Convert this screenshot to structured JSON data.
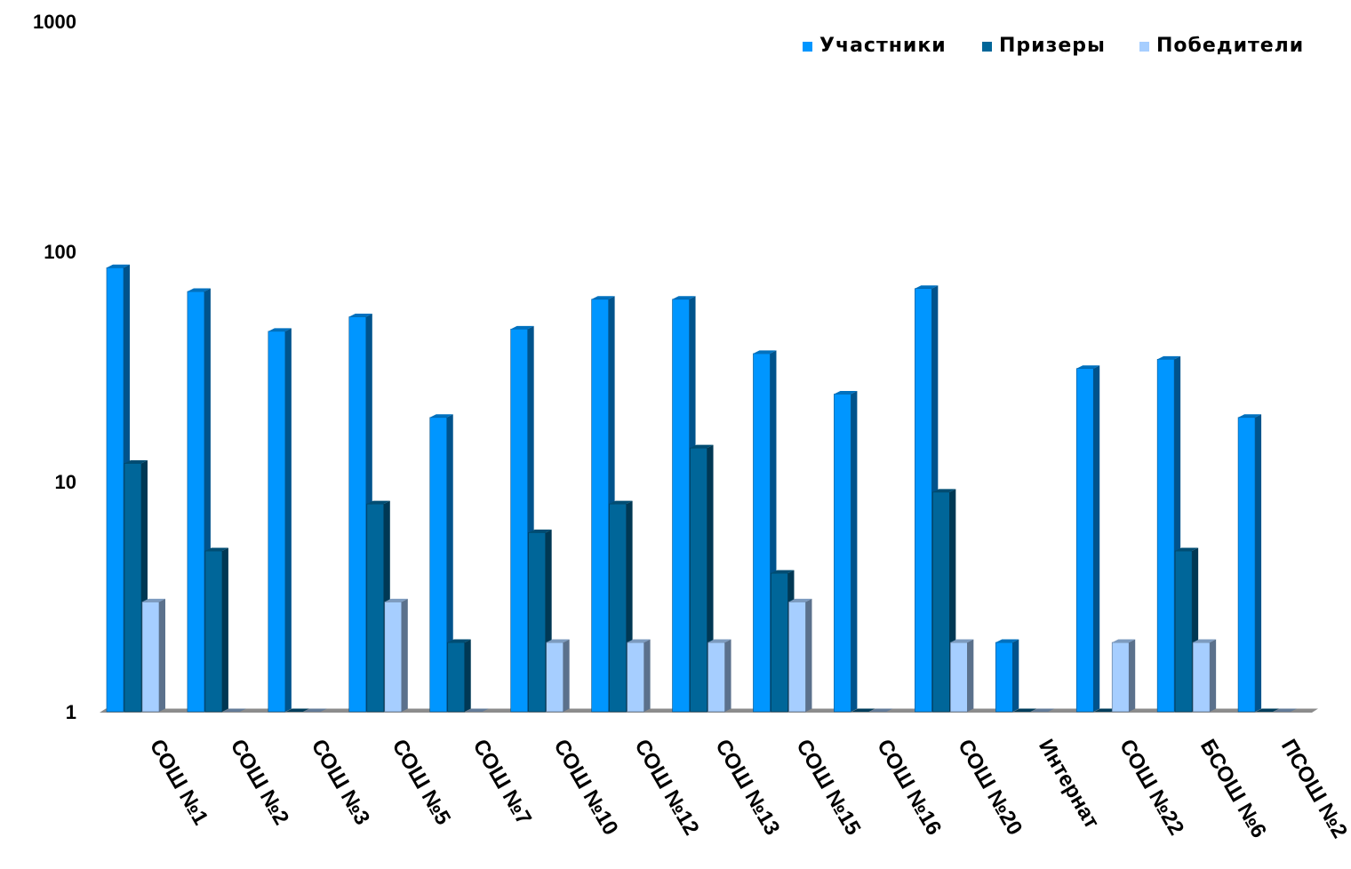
{
  "chart_data": {
    "type": "bar",
    "title": "",
    "xlabel": "",
    "ylabel": "",
    "y_scale": "log",
    "ylim": [
      1,
      1000
    ],
    "y_ticks": [
      "1",
      "10",
      "100",
      "1000"
    ],
    "y_tick_values": [
      1,
      10,
      100,
      1000
    ],
    "grid": false,
    "legend_position": "top-right",
    "categories": [
      "СОШ №1",
      "СОШ №2",
      "СОШ №3",
      "СОШ №5",
      "СОШ №7",
      "СОШ №10",
      "СОШ №12",
      "СОШ №13",
      "СОШ №15",
      "СОШ №16",
      "СОШ №20",
      "Интернат",
      "СОШ №22",
      "БСОШ №6",
      "ПСОШ №2"
    ],
    "series": [
      {
        "name": "Участники",
        "color": "#0096FF",
        "values": [
          85,
          67,
          45,
          52,
          19,
          46,
          62,
          62,
          36,
          24,
          69,
          2,
          31,
          34,
          19
        ]
      },
      {
        "name": "Призеры",
        "color": "#006699",
        "values": [
          12,
          5,
          1,
          8,
          2,
          6,
          8,
          14,
          4,
          1,
          9,
          1,
          1,
          5,
          1
        ]
      },
      {
        "name": "Победители",
        "color": "#A6CEFF",
        "values": [
          3,
          1,
          1,
          3,
          1,
          2,
          2,
          2,
          3,
          1,
          2,
          1,
          2,
          2,
          1
        ]
      }
    ]
  }
}
